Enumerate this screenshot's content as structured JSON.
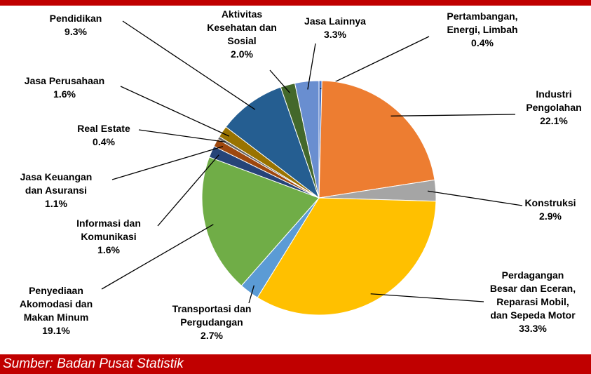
{
  "chart_data": {
    "type": "pie",
    "categories": [
      "Pertambangan,\nEnergi, Limbah",
      "Industri\nPengolahan",
      "Konstruksi",
      "Perdagangan\nBesar dan Eceran,\nReparasi Mobil,\ndan Sepeda Motor",
      "Transportasi dan\nPergudangan",
      "Penyediaan\nAkomodasi dan\nMakan Minum",
      "Informasi dan\nKomunikasi",
      "Jasa Keuangan\ndan Asuransi",
      "Real Estate",
      "Jasa Perusahaan",
      "Pendidikan",
      "Aktivitas\nKesehatan dan\nSosial",
      "Jasa Lainnya"
    ],
    "values": [
      0.4,
      22.1,
      2.9,
      33.3,
      2.7,
      19.1,
      1.6,
      1.1,
      0.4,
      1.6,
      9.3,
      2.0,
      3.3
    ],
    "value_labels": [
      "0.4%",
      "22.1%",
      "2.9%",
      "33.3%",
      "2.7%",
      "19.1%",
      "1.6%",
      "1.1%",
      "0.4%",
      "1.6%",
      "9.3%",
      "2.0%",
      "3.3%"
    ],
    "colors": [
      "#4472c4",
      "#ed7d31",
      "#a5a5a5",
      "#ffc000",
      "#5b9bd5",
      "#70ad47",
      "#264478",
      "#9e480e",
      "#636363",
      "#997300",
      "#255e91",
      "#43682b",
      "#698ed0"
    ]
  },
  "source": "Sumber: Badan Pusat Statistik"
}
